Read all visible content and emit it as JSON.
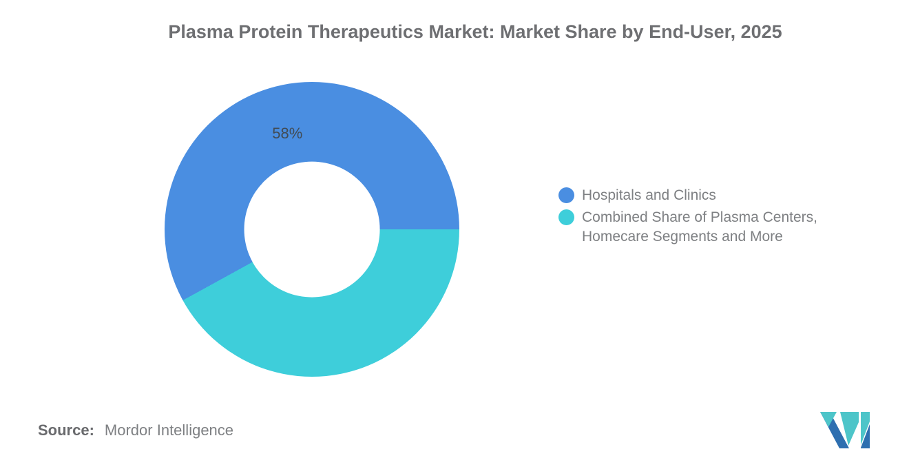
{
  "chart_data": {
    "type": "pie",
    "subtype": "donut",
    "title": "Plasma Protein Therapeutics Market: Market Share by End-User, 2025",
    "categories": [
      "Hospitals and Clinics",
      "Combined Share of Plasma Centers, Homecare Segments and More"
    ],
    "values": [
      58,
      42
    ],
    "colors": [
      "#4A8EE1",
      "#3ECEDA"
    ],
    "slice_labels": [
      "58%",
      ""
    ],
    "start_angle_deg": -118.8,
    "inner_radius_ratio": 0.46,
    "label_radius_ratio": 0.67,
    "legend_position": "right",
    "grid": false
  },
  "source": {
    "label": "Source:",
    "value": "Mordor Intelligence"
  },
  "logo": {
    "name": "Mordor Intelligence logo",
    "colors": {
      "blue": "#2E6FB0",
      "teal": "#4DC5C9"
    }
  }
}
